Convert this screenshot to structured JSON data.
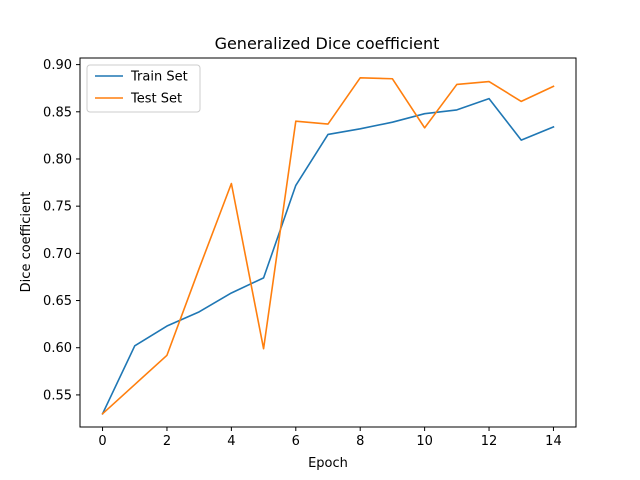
{
  "chart_data": {
    "type": "line",
    "title": "Generalized Dice coefficient",
    "xlabel": "Epoch",
    "ylabel": "Dice coefficient",
    "x": [
      0,
      1,
      2,
      3,
      4,
      5,
      6,
      7,
      8,
      9,
      10,
      11,
      12,
      13,
      14
    ],
    "xlim": [
      -0.7,
      14.7
    ],
    "ylim": [
      0.516,
      0.907
    ],
    "xticks": [
      0,
      2,
      4,
      6,
      8,
      10,
      12,
      14
    ],
    "yticks": [
      0.55,
      0.6,
      0.65,
      0.7,
      0.75,
      0.8,
      0.85,
      0.9
    ],
    "xtick_labels": [
      "0",
      "2",
      "4",
      "6",
      "8",
      "10",
      "12",
      "14"
    ],
    "ytick_labels": [
      "0.55",
      "0.60",
      "0.65",
      "0.70",
      "0.75",
      "0.80",
      "0.85",
      "0.90"
    ],
    "grid": false,
    "legend_position": "upper-left",
    "series": [
      {
        "name": "Train Set",
        "color": "#1f77b4",
        "values": [
          0.53,
          0.602,
          0.623,
          0.638,
          0.658,
          0.674,
          0.772,
          0.826,
          0.832,
          0.839,
          0.848,
          0.852,
          0.864,
          0.82,
          0.834
        ]
      },
      {
        "name": "Test Set",
        "color": "#ff7f0e",
        "values": [
          0.53,
          0.561,
          0.592,
          0.684,
          0.774,
          0.599,
          0.84,
          0.837,
          0.886,
          0.885,
          0.833,
          0.879,
          0.882,
          0.861,
          0.877
        ]
      }
    ]
  }
}
